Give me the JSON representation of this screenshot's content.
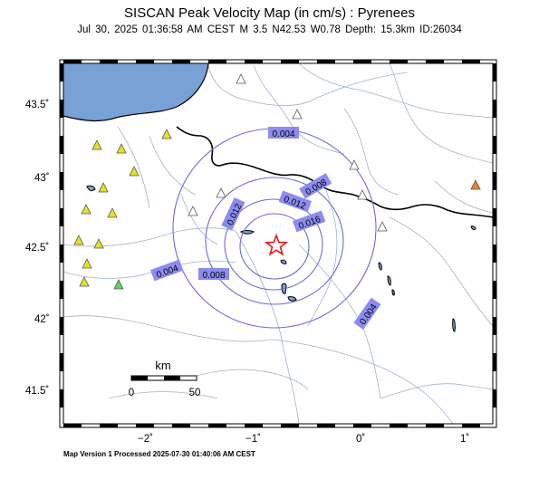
{
  "title": "SISCAN Peak Velocity Map (in cm/s) : Pyrenees",
  "subtitle": "Jul 30, 2025 01:36:58 AM CEST   M 3.5   N42.53 W0.78   Depth: 15.3km   ID:26034",
  "footer": "Map Version 1 Processed 2025-07-30 01:40:06 AM CEST",
  "map": {
    "lat_ticks": [
      "43.5˚",
      "43˚",
      "42.5˚",
      "42˚",
      "41.5˚"
    ],
    "lon_ticks": [
      "−2˚",
      "−1˚",
      "0˚",
      "1˚"
    ],
    "contour_labels": [
      "0.004",
      "0.008",
      "0.012",
      "0.016",
      "0.008",
      "0.004",
      "0.004",
      "0.012"
    ],
    "scale_bar": {
      "unit": "km",
      "min": "0",
      "max": "50"
    },
    "colors": {
      "sea": "#7aa0d8",
      "contour": "#6c6cd8",
      "label_bg": "#8c8cf0",
      "river": "#9fb3cc",
      "border": "#000000",
      "epicenter": "#e01818"
    },
    "stations": [
      {
        "name": "station-1",
        "color": "#ffffff"
      },
      {
        "name": "station-2",
        "color": "#ffffff"
      },
      {
        "name": "station-3",
        "color": "#ffffff"
      },
      {
        "name": "station-4",
        "color": "#ffffff"
      },
      {
        "name": "station-5",
        "color": "#ffffff"
      },
      {
        "name": "station-6",
        "color": "#ffffff"
      },
      {
        "name": "station-7",
        "color": "#ffffff"
      },
      {
        "name": "station-8",
        "color": "#e8e020"
      },
      {
        "name": "station-9",
        "color": "#e8e020"
      },
      {
        "name": "station-10",
        "color": "#e8e020"
      },
      {
        "name": "station-11",
        "color": "#e8e020"
      },
      {
        "name": "station-12",
        "color": "#e8e020"
      },
      {
        "name": "station-13",
        "color": "#e8e020"
      },
      {
        "name": "station-14",
        "color": "#e8e020"
      },
      {
        "name": "station-15",
        "color": "#e8e020"
      },
      {
        "name": "station-16",
        "color": "#e8e020"
      },
      {
        "name": "station-17",
        "color": "#e8e020"
      },
      {
        "name": "station-18",
        "color": "#e8e020"
      },
      {
        "name": "station-19",
        "color": "#60d060"
      },
      {
        "name": "station-20",
        "color": "#f08020"
      }
    ]
  }
}
